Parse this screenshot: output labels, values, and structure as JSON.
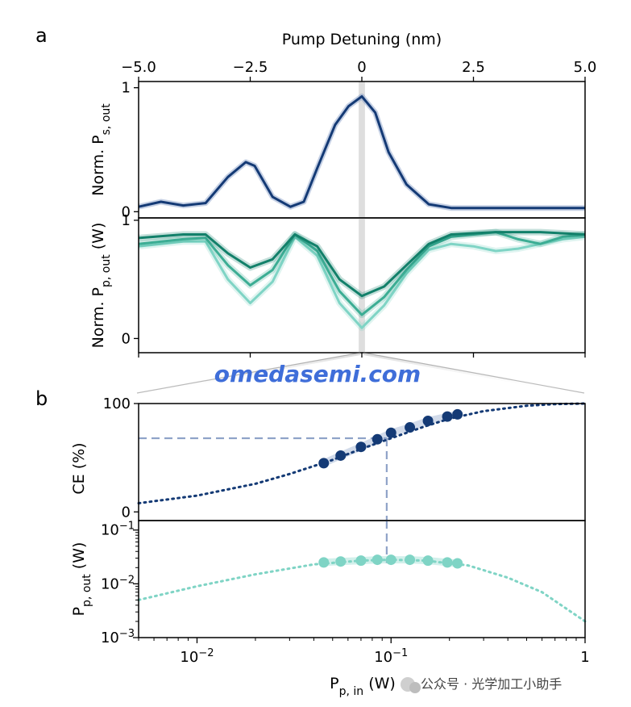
{
  "panel_a_label": "a",
  "panel_b_label": "b",
  "watermark": "omedasemi.com",
  "credit": "公众号 · 光学加工小助手",
  "colors": {
    "signal": "#143a75",
    "signal_band": "#7f97c4",
    "pump_dark": "#12806a",
    "pump_mid": "#3cad94",
    "pump_light": "#7fd4c5",
    "fit": "#143a75",
    "dashed_guide": "#8fa3c8",
    "center_marker": "#c8c8c8",
    "zoom_wedge": "#d9d9d9"
  },
  "chart_data": [
    {
      "id": "a-top",
      "type": "line",
      "title": "",
      "xlabel": "Pump Detuning (nm)",
      "ylabel": "Norm. P_s, out",
      "xlim": [
        -5,
        5
      ],
      "ylim": [
        -0.05,
        1.05
      ],
      "xticks": [
        -5,
        -2.5,
        0,
        2.5,
        5
      ],
      "xtick_labels": [
        "−5.0",
        "−2.5",
        "0",
        "2.5",
        "5.0"
      ],
      "yticks": [
        0,
        1
      ],
      "ytick_labels": [
        "0",
        "1"
      ],
      "series": [
        {
          "color_key": "signal",
          "x": [
            -5,
            -4.5,
            -4,
            -3.5,
            -3,
            -2.6,
            -2.4,
            -2,
            -1.6,
            -1.3,
            -1,
            -0.6,
            -0.3,
            0,
            0.3,
            0.6,
            1,
            1.5,
            2,
            3,
            4,
            5
          ],
          "y": [
            0.04,
            0.08,
            0.05,
            0.07,
            0.28,
            0.4,
            0.37,
            0.12,
            0.04,
            0.08,
            0.35,
            0.7,
            0.85,
            0.93,
            0.8,
            0.48,
            0.22,
            0.06,
            0.03,
            0.03,
            0.03,
            0.03
          ]
        }
      ]
    },
    {
      "id": "a-bottom",
      "type": "line",
      "xlabel": "",
      "ylabel": "Norm. P_p, out (W)",
      "xlim": [
        -5,
        5
      ],
      "ylim": [
        -0.12,
        1.02
      ],
      "xticks": [
        -5,
        -2.5,
        0,
        2.5,
        5
      ],
      "yticks": [
        0,
        1
      ],
      "ytick_labels": [
        "0",
        "1"
      ],
      "series": [
        {
          "color_key": "pump_dark",
          "x": [
            -5,
            -4,
            -3.5,
            -3,
            -2.5,
            -2,
            -1.5,
            -1,
            -0.5,
            0,
            0.5,
            1,
            1.5,
            2,
            3,
            4,
            5
          ],
          "y": [
            0.85,
            0.88,
            0.88,
            0.72,
            0.6,
            0.67,
            0.88,
            0.78,
            0.5,
            0.36,
            0.44,
            0.62,
            0.8,
            0.88,
            0.9,
            0.9,
            0.88
          ]
        },
        {
          "color_key": "pump_mid",
          "x": [
            -5,
            -4,
            -3.5,
            -3,
            -2.5,
            -2,
            -1.5,
            -1,
            -0.5,
            0,
            0.5,
            1,
            1.5,
            2,
            3,
            3.5,
            4,
            4.5,
            5
          ],
          "y": [
            0.8,
            0.84,
            0.85,
            0.62,
            0.45,
            0.58,
            0.88,
            0.74,
            0.4,
            0.2,
            0.35,
            0.58,
            0.78,
            0.86,
            0.9,
            0.84,
            0.8,
            0.86,
            0.88
          ]
        },
        {
          "color_key": "pump_light",
          "x": [
            -5,
            -4,
            -3.5,
            -3,
            -2.5,
            -2,
            -1.5,
            -1,
            -0.5,
            0,
            0.5,
            1,
            1.5,
            2,
            2.5,
            3,
            3.5,
            4,
            4.5,
            5
          ],
          "y": [
            0.78,
            0.82,
            0.82,
            0.5,
            0.3,
            0.48,
            0.86,
            0.7,
            0.3,
            0.09,
            0.28,
            0.55,
            0.75,
            0.8,
            0.78,
            0.74,
            0.76,
            0.8,
            0.84,
            0.86
          ]
        }
      ]
    },
    {
      "id": "b-top",
      "type": "scatter",
      "xlabel": "",
      "ylabel": "CE (%)",
      "xscale": "log",
      "xlim": [
        0.005,
        1
      ],
      "ylim": [
        -8,
        100
      ],
      "yticks": [
        0,
        100
      ],
      "ytick_labels": [
        "0",
        "100"
      ],
      "series": [
        {
          "kind": "points",
          "color_key": "signal",
          "x": [
            0.045,
            0.055,
            0.07,
            0.085,
            0.1,
            0.125,
            0.155,
            0.195,
            0.22
          ],
          "y": [
            45,
            52,
            60,
            67,
            73,
            78,
            84,
            88,
            90
          ]
        },
        {
          "kind": "fit",
          "color_key": "fit",
          "x": [
            0.005,
            0.01,
            0.02,
            0.03,
            0.05,
            0.07,
            0.1,
            0.15,
            0.2,
            0.3,
            0.5,
            0.7,
            1
          ],
          "y": [
            8,
            15,
            26,
            35,
            48,
            58,
            68,
            79,
            86,
            93,
            98,
            99.5,
            100
          ]
        }
      ],
      "guide": {
        "x": 0.095,
        "y": 68
      }
    },
    {
      "id": "b-bottom",
      "type": "scatter",
      "xlabel": "P_p, in (W)",
      "ylabel": "P_p, out (W)",
      "xscale": "log",
      "yscale": "log",
      "xlim": [
        0.005,
        1
      ],
      "ylim": [
        0.001,
        0.15
      ],
      "xticks": [
        0.01,
        0.1,
        1
      ],
      "xtick_labels": [
        "10−2",
        "10−1",
        "1"
      ],
      "yticks": [
        0.001,
        0.01,
        0.1
      ],
      "ytick_labels": [
        "10−3",
        "10−2",
        "10−1"
      ],
      "series": [
        {
          "kind": "points",
          "color_key": "pump_light",
          "x": [
            0.045,
            0.055,
            0.07,
            0.085,
            0.1,
            0.125,
            0.155,
            0.195,
            0.22
          ],
          "y": [
            0.025,
            0.026,
            0.027,
            0.028,
            0.028,
            0.028,
            0.027,
            0.025,
            0.024
          ]
        },
        {
          "kind": "fit",
          "color_key": "pump_light",
          "x": [
            0.005,
            0.01,
            0.02,
            0.04,
            0.07,
            0.1,
            0.15,
            0.25,
            0.4,
            0.6,
            1
          ],
          "y": [
            0.005,
            0.009,
            0.015,
            0.023,
            0.027,
            0.028,
            0.027,
            0.022,
            0.013,
            0.007,
            0.002
          ]
        }
      ],
      "guide": {
        "x": 0.095,
        "y": 0.028
      }
    }
  ]
}
